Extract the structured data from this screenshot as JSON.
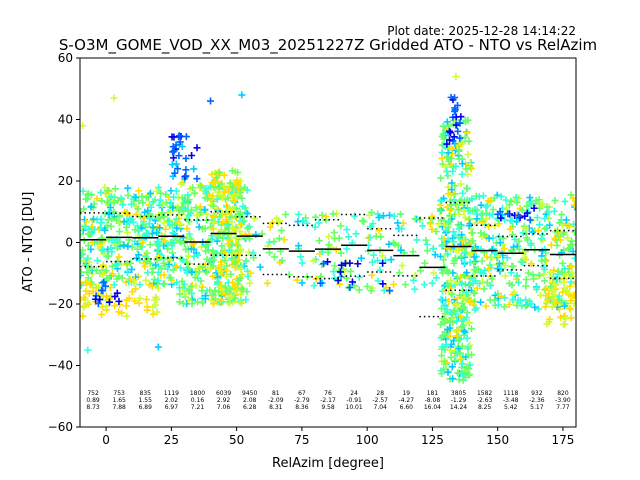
{
  "plot_date": "Plot date: 2025-12-28 14:14:22",
  "chart_data": {
    "type": "scatter",
    "title": "S-O3M_GOME_VOD_XX_M03_20251227Z Gridded ATO - NTO vs RelAzim",
    "xlabel": "RelAzim [degree]",
    "ylabel": "ATO - NTO [DU]",
    "xlim": [
      -10,
      180
    ],
    "ylim": [
      -60,
      60
    ],
    "xticks": [
      0,
      25,
      50,
      75,
      100,
      125,
      150,
      175
    ],
    "yticks": [
      -60,
      -40,
      -20,
      0,
      20,
      40,
      60
    ],
    "bin_edges": [
      -10,
      0,
      10,
      20,
      30,
      40,
      50,
      60,
      70,
      80,
      90,
      100,
      110,
      120,
      130,
      140,
      150,
      160,
      170,
      180
    ],
    "stats": {
      "counts": [
        "752",
        "753",
        "835",
        "1119",
        "1800",
        "6039",
        "9450",
        "81",
        "67",
        "76",
        "24",
        "28",
        "19",
        "181",
        "3805",
        "1582",
        "1118",
        "932",
        "820"
      ],
      "means": [
        "0.89",
        "1.65",
        "1.55",
        "2.02",
        "0.16",
        "2.92",
        "2.08",
        "-2.09",
        "-2.79",
        "-2.17",
        "-0.91",
        "-2.57",
        "-4.27",
        "-8.08",
        "-1.29",
        "-2.63",
        "-3.48",
        "-2.36",
        "-3.90"
      ],
      "stds": [
        "8.73",
        "7.88",
        "6.89",
        "6.97",
        "7.21",
        "7.06",
        "6.28",
        "8.31",
        "8.36",
        "9.58",
        "10.01",
        "7.04",
        "6.60",
        "16.04",
        "14.24",
        "8.25",
        "5.42",
        "5.17",
        "7.77"
      ]
    },
    "colors": {
      "green": "#66ff66",
      "cyan": "#33ffdd",
      "yellow": "#ffdd00",
      "lightblue": "#00ccff",
      "blue": "#0066ff",
      "darkblue": "#0000ee",
      "lime": "#ccff33"
    }
  }
}
